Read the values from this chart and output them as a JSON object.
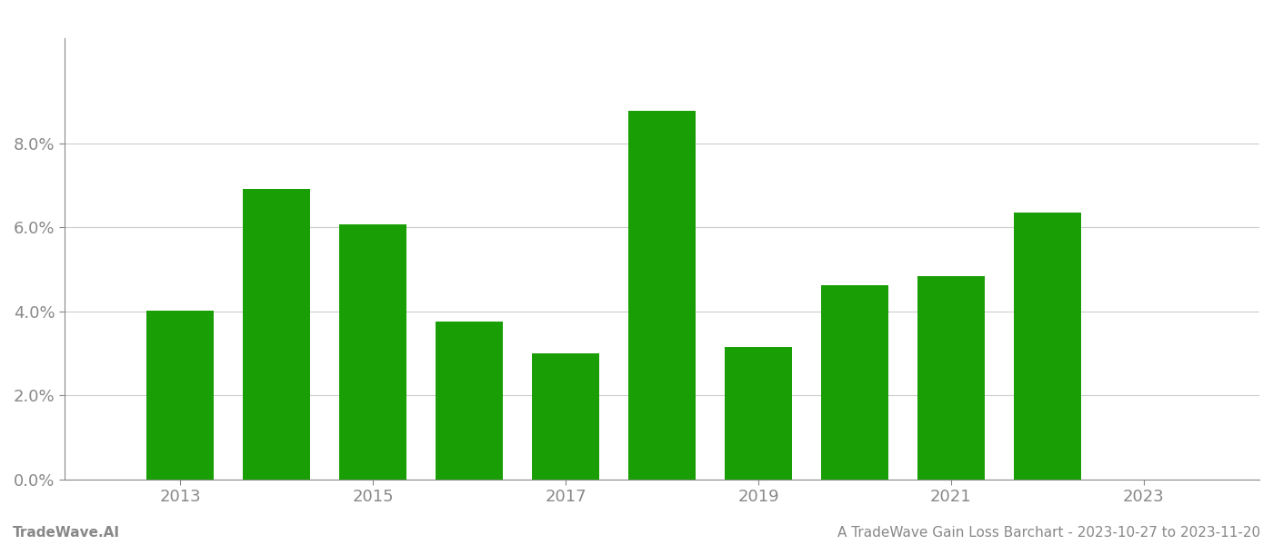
{
  "years": [
    2013,
    2014,
    2015,
    2016,
    2017,
    2018,
    2019,
    2020,
    2021,
    2022
  ],
  "values": [
    0.0401,
    0.0692,
    0.0608,
    0.0375,
    0.03,
    0.0878,
    0.0315,
    0.0462,
    0.0485,
    0.0635
  ],
  "bar_color": "#1a9e06",
  "background_color": "#ffffff",
  "footer_left": "TradeWave.AI",
  "footer_right": "A TradeWave Gain Loss Barchart - 2023-10-27 to 2023-11-20",
  "footer_color": "#888888",
  "footer_fontsize": 11,
  "ylim": [
    0,
    0.105
  ],
  "ytick_positions": [
    0.0,
    0.02,
    0.04,
    0.06,
    0.08
  ],
  "grid_color": "#cccccc",
  "bar_width": 0.7,
  "xtick_fontsize": 13,
  "ytick_fontsize": 13,
  "xlim_left": 2011.8,
  "xlim_right": 2024.2
}
